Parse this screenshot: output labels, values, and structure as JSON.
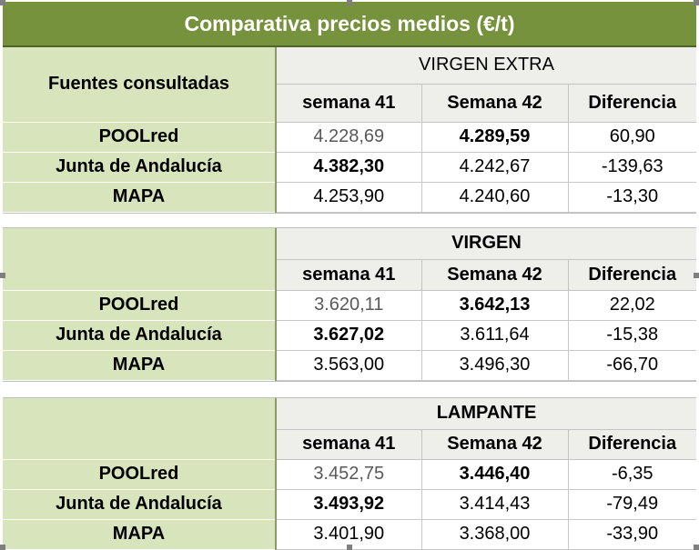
{
  "title": "Comparativa precios medios (€/t)",
  "source_header": "Fuentes consultadas",
  "columns": {
    "w41": "semana 41",
    "w42": "Semana 42",
    "diff": "Diferencia"
  },
  "sections": [
    {
      "category": "VIRGEN EXTRA",
      "rows": [
        {
          "source": "POOLred",
          "w41": "4.228,69",
          "w42": "4.289,59",
          "diff": "60,90"
        },
        {
          "source": "Junta de Andalucía",
          "w41": "4.382,30",
          "w42": "4.242,67",
          "diff": "-139,63"
        },
        {
          "source": "MAPA",
          "w41": "4.253,90",
          "w42": "4.240,60",
          "diff": "-13,30"
        }
      ]
    },
    {
      "category": "VIRGEN",
      "rows": [
        {
          "source": "POOLred",
          "w41": "3.620,11",
          "w42": "3.642,13",
          "diff": "22,02"
        },
        {
          "source": "Junta de Andalucía",
          "w41": "3.627,02",
          "w42": "3.611,64",
          "diff": "-15,38"
        },
        {
          "source": "MAPA",
          "w41": "3.563,00",
          "w42": "3.496,30",
          "diff": "-66,70"
        }
      ]
    },
    {
      "category": "LAMPANTE",
      "rows": [
        {
          "source": "POOLred",
          "w41": "3.452,75",
          "w42": "3.446,40",
          "diff": "-6,35"
        },
        {
          "source": "Junta de Andalucía",
          "w41": "3.493,92",
          "w42": "3.414,43",
          "diff": "-79,49"
        },
        {
          "source": "MAPA",
          "w41": "3.401,90",
          "w42": "3.368,00",
          "diff": "-33,90"
        }
      ]
    }
  ]
}
